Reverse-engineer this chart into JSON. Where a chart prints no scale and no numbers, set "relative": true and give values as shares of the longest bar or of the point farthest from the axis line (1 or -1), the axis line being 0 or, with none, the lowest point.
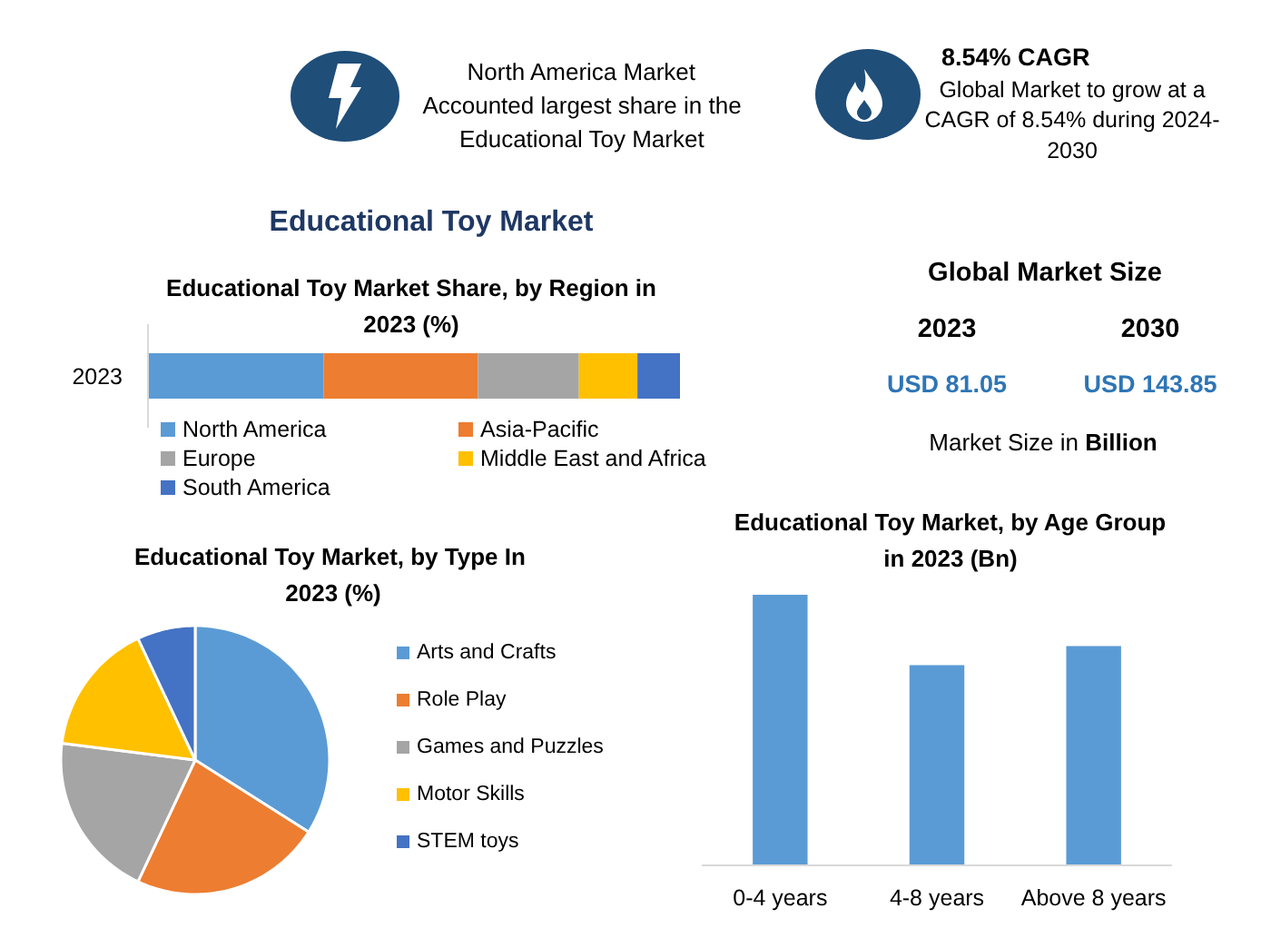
{
  "chart_data": [
    {
      "type": "other",
      "annotations": [
        "North America Market Accounted largest share in the Educational Toy Market"
      ]
    },
    {
      "type": "other",
      "title": "8.54% CAGR",
      "annotations": [
        "Global Market to grow at a CAGR of 8.54% during 2024-2030"
      ]
    },
    {
      "type": "bar",
      "orientation": "horizontal",
      "stacked": true,
      "relative": true,
      "title": "Educational Toy Market",
      "subtitle": "Educational Toy Market Share, by Region in 2023 (%)",
      "categories": [
        "2023"
      ],
      "series": [
        {
          "name": "North America",
          "color": "#5b9bd5",
          "values": [
            0.33
          ]
        },
        {
          "name": "Asia-Pacific",
          "color": "#ed7d31",
          "values": [
            0.29
          ]
        },
        {
          "name": "Europe",
          "color": "#a5a5a5",
          "values": [
            0.19
          ]
        },
        {
          "name": "Middle East and Africa",
          "color": "#ffc000",
          "values": [
            0.11
          ]
        },
        {
          "name": "South America",
          "color": "#4472c4",
          "values": [
            0.08
          ]
        }
      ],
      "legend": "bottom"
    },
    {
      "type": "other",
      "title": "Global Market Size",
      "categories": [
        "2023",
        "2030"
      ],
      "value_labels": [
        "USD 81.05",
        "USD 143.85"
      ],
      "annotations": [
        "Market Size in Billion"
      ]
    },
    {
      "type": "pie",
      "title": "Educational Toy  Market, by Type In 2023 (%)",
      "categories": [
        "Arts and Crafts",
        "Role Play",
        "Games and Puzzles",
        "Motor Skills",
        "STEM toys"
      ],
      "values": [
        34,
        23,
        20,
        16,
        7
      ],
      "colors": [
        "#5b9bd5",
        "#ed7d31",
        "#a5a5a5",
        "#ffc000",
        "#4472c4"
      ],
      "legend": "right"
    },
    {
      "type": "bar",
      "relative": true,
      "title": "Educational Toy Market, by Age Group in 2023 (Bn)",
      "categories": [
        "0-4 years",
        "4-8 years",
        "Above 8 years"
      ],
      "values": [
        1,
        0.74,
        0.81
      ],
      "color": "#5b9bd5"
    }
  ]
}
